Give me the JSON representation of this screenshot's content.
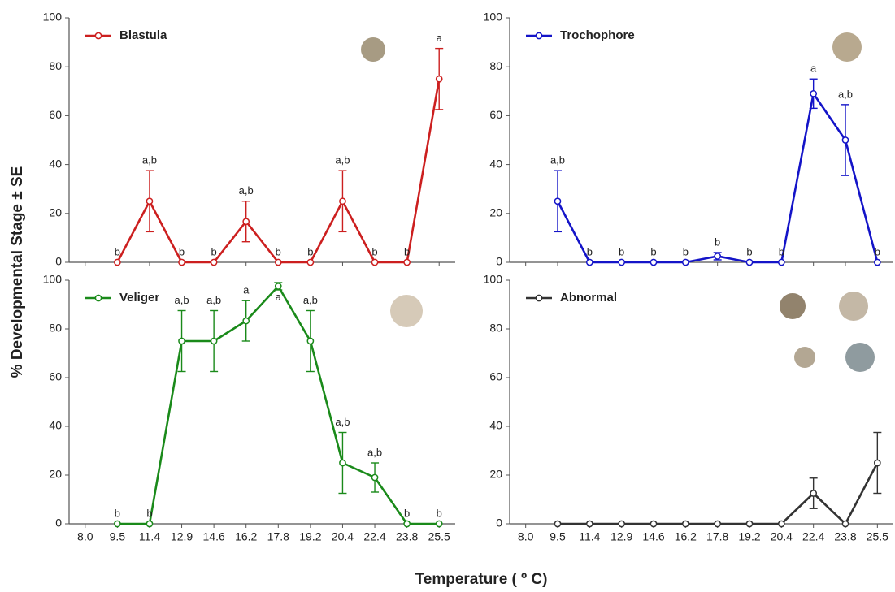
{
  "y_label": "% Developmental Stage ± SE",
  "x_label": "Temperature ( º C)",
  "categories": [
    "8.0",
    "9.5",
    "11.4",
    "12.9",
    "14.6",
    "16.2",
    "17.8",
    "19.2",
    "20.4",
    "22.4",
    "23.8",
    "25.5"
  ],
  "chart_data": [
    {
      "type": "line",
      "name": "Blastula",
      "color": "#cc1f1f",
      "legend": "top-left",
      "values": [
        null,
        0,
        25,
        0,
        0,
        16.7,
        0,
        0,
        25,
        0,
        0,
        75
      ],
      "errors": [
        null,
        null,
        12.5,
        null,
        null,
        8.3,
        null,
        null,
        12.5,
        null,
        null,
        12.5
      ],
      "annotations": [
        null,
        "b",
        "a,b",
        "b",
        "b",
        "a,b",
        "b",
        "b",
        "a,b",
        "b",
        "b",
        "a"
      ],
      "ylim": [
        0,
        100
      ],
      "yticks": [
        0,
        20,
        40,
        60,
        80,
        100
      ]
    },
    {
      "type": "line",
      "name": "Trochophore",
      "color": "#1414c8",
      "legend": "top-left",
      "values": [
        null,
        25,
        0,
        0,
        0,
        0,
        2.5,
        0,
        0,
        69,
        50,
        0
      ],
      "errors": [
        null,
        12.5,
        null,
        null,
        null,
        null,
        1.5,
        null,
        null,
        6,
        14.5,
        null
      ],
      "annotations": [
        null,
        "a,b",
        "b",
        "b",
        "b",
        "b",
        "b",
        "b",
        "b",
        "a",
        "a,b",
        "b"
      ],
      "ylim": [
        0,
        100
      ],
      "yticks": [
        0,
        20,
        40,
        60,
        80,
        100
      ]
    },
    {
      "type": "line",
      "name": "Veliger",
      "color": "#1a8a1a",
      "legend": "top-left",
      "values": [
        null,
        0,
        0,
        75,
        75,
        83.3,
        97.5,
        75,
        25,
        19,
        0,
        0
      ],
      "errors": [
        null,
        null,
        null,
        12.5,
        12.5,
        8.3,
        1.5,
        12.5,
        12.5,
        6,
        null,
        null
      ],
      "annotations": [
        null,
        "b",
        "b",
        "a,b",
        "a,b",
        "a",
        "a",
        "a,b",
        "a,b",
        "a,b",
        "b",
        "b"
      ],
      "ylim": [
        0,
        100
      ],
      "yticks": [
        0,
        20,
        40,
        60,
        80,
        100
      ]
    },
    {
      "type": "line",
      "name": "Abnormal",
      "color": "#333333",
      "legend": "top-left",
      "values": [
        null,
        0,
        0,
        0,
        0,
        0,
        0,
        0,
        0,
        12.5,
        0,
        25
      ],
      "errors": [
        null,
        null,
        null,
        null,
        null,
        null,
        null,
        null,
        null,
        6.25,
        null,
        12.5
      ],
      "ylim": [
        0,
        100
      ],
      "yticks": [
        0,
        20,
        40,
        60,
        80,
        100
      ]
    }
  ]
}
